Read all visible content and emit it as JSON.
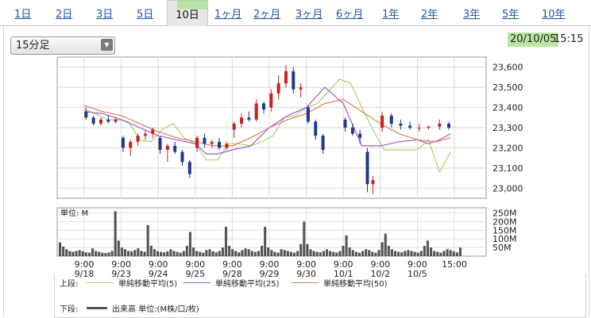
{
  "tabs": [
    {
      "label": "1日",
      "active": false
    },
    {
      "label": "2日",
      "active": false
    },
    {
      "label": "3日",
      "active": false
    },
    {
      "label": "5日",
      "active": false
    },
    {
      "label": "10日",
      "active": true
    },
    {
      "label": "1ヶ月",
      "active": false
    },
    {
      "label": "2ヶ月",
      "active": false
    },
    {
      "label": "3ヶ月",
      "active": false
    },
    {
      "label": "6ヶ月",
      "active": false
    },
    {
      "label": "1年",
      "active": false
    },
    {
      "label": "2年",
      "active": false
    },
    {
      "label": "3年",
      "active": false
    },
    {
      "label": "5年",
      "active": false
    },
    {
      "label": "10年",
      "active": false
    }
  ],
  "interval_select": {
    "value": "15分足"
  },
  "timestamp": {
    "date": "20/10/05",
    "time": "15:15"
  },
  "chart_data": [
    {
      "type": "line",
      "x_ticks": [
        {
          "time": "9:00",
          "date": "9/18"
        },
        {
          "time": "9:00",
          "date": "9/23"
        },
        {
          "time": "9:00",
          "date": "9/24"
        },
        {
          "time": "9:00",
          "date": "9/25"
        },
        {
          "time": "9:00",
          "date": "9/28"
        },
        {
          "time": "9:00",
          "date": "9/29"
        },
        {
          "time": "9:00",
          "date": "9/30"
        },
        {
          "time": "9:00",
          "date": "10/1"
        },
        {
          "time": "9:00",
          "date": "10/2"
        },
        {
          "time": "9:00",
          "date": "10/5"
        },
        {
          "time": "15:00",
          "date": ""
        }
      ],
      "y_ticks": [
        "23,600",
        "23,500",
        "23,400",
        "23,300",
        "23,200",
        "23,100",
        "23,000"
      ],
      "ylim": [
        22950,
        23650
      ],
      "series": [
        {
          "name": "単純移動平均(5)",
          "color": "#a7d46a",
          "x": [
            0,
            0.3,
            0.6,
            0.9,
            1.2,
            1.5,
            1.8,
            2.1,
            2.4,
            2.7,
            3,
            3.3,
            3.6,
            3.9,
            4.2,
            4.5,
            4.8,
            5.1,
            5.4,
            5.7,
            6,
            6.3,
            6.6,
            6.9,
            7.2,
            7.5,
            7.8,
            8.1,
            8.4,
            8.7,
            9,
            9.3,
            9.6,
            9.9
          ],
          "values": [
            23390,
            23370,
            23340,
            23340,
            23330,
            23240,
            23230,
            23290,
            23320,
            23250,
            23220,
            23140,
            23140,
            23220,
            23220,
            23210,
            23230,
            23260,
            23350,
            23360,
            23400,
            23420,
            23480,
            23540,
            23520,
            23400,
            23290,
            23190,
            23190,
            23190,
            23190,
            23240,
            23080,
            23180
          ]
        },
        {
          "name": "単純移動平均(25)",
          "color": "#a05ad2",
          "x": [
            0,
            0.5,
            1,
            1.5,
            2,
            2.5,
            3,
            3.3,
            3.6,
            4,
            4.5,
            5,
            5.5,
            6,
            6.5,
            7,
            7.5,
            8,
            8.5,
            9,
            9.3,
            9.6,
            9.9
          ],
          "values": [
            23380,
            23370,
            23340,
            23300,
            23260,
            23240,
            23220,
            23170,
            23170,
            23190,
            23210,
            23300,
            23360,
            23400,
            23500,
            23420,
            23210,
            23210,
            23230,
            23240,
            23220,
            23240,
            23270
          ]
        },
        {
          "name": "単純移動平均(50)",
          "color": "#dd7e5a",
          "x": [
            0,
            0.5,
            1,
            1.5,
            2,
            2.5,
            3,
            3.5,
            4,
            4.5,
            5,
            5.5,
            6,
            6.5,
            7,
            7.5,
            8,
            8.5,
            9,
            9.5,
            9.9
          ],
          "values": [
            23410,
            23380,
            23360,
            23320,
            23280,
            23250,
            23230,
            23210,
            23210,
            23250,
            23300,
            23340,
            23370,
            23420,
            23440,
            23380,
            23320,
            23270,
            23240,
            23230,
            23250
          ]
        }
      ],
      "candles": [
        {
          "x": 0.05,
          "o": 23380,
          "h": 23400,
          "l": 23340,
          "c": 23350
        },
        {
          "x": 0.25,
          "o": 23350,
          "h": 23360,
          "l": 23310,
          "c": 23320
        },
        {
          "x": 0.45,
          "o": 23320,
          "h": 23350,
          "l": 23310,
          "c": 23340
        },
        {
          "x": 0.65,
          "o": 23340,
          "h": 23360,
          "l": 23320,
          "c": 23330
        },
        {
          "x": 0.85,
          "o": 23330,
          "h": 23350,
          "l": 23320,
          "c": 23340
        },
        {
          "x": 1.05,
          "o": 23250,
          "h": 23260,
          "l": 23180,
          "c": 23200
        },
        {
          "x": 1.25,
          "o": 23200,
          "h": 23240,
          "l": 23160,
          "c": 23230
        },
        {
          "x": 1.45,
          "o": 23230,
          "h": 23270,
          "l": 23210,
          "c": 23260
        },
        {
          "x": 1.65,
          "o": 23260,
          "h": 23290,
          "l": 23240,
          "c": 23270
        },
        {
          "x": 1.85,
          "o": 23270,
          "h": 23300,
          "l": 23250,
          "c": 23290
        },
        {
          "x": 2.05,
          "o": 23250,
          "h": 23260,
          "l": 23170,
          "c": 23190
        },
        {
          "x": 2.25,
          "o": 23190,
          "h": 23220,
          "l": 23130,
          "c": 23210
        },
        {
          "x": 2.45,
          "o": 23210,
          "h": 23230,
          "l": 23170,
          "c": 23180
        },
        {
          "x": 2.65,
          "o": 23180,
          "h": 23190,
          "l": 23110,
          "c": 23130
        },
        {
          "x": 2.85,
          "o": 23130,
          "h": 23140,
          "l": 23050,
          "c": 23070
        },
        {
          "x": 3.05,
          "o": 23200,
          "h": 23260,
          "l": 23180,
          "c": 23250
        },
        {
          "x": 3.25,
          "o": 23250,
          "h": 23270,
          "l": 23200,
          "c": 23220
        },
        {
          "x": 3.45,
          "o": 23220,
          "h": 23240,
          "l": 23200,
          "c": 23230
        },
        {
          "x": 3.65,
          "o": 23230,
          "h": 23250,
          "l": 23190,
          "c": 23200
        },
        {
          "x": 3.85,
          "o": 23200,
          "h": 23230,
          "l": 23190,
          "c": 23220
        },
        {
          "x": 4.05,
          "o": 23290,
          "h": 23330,
          "l": 23250,
          "c": 23320
        },
        {
          "x": 4.25,
          "o": 23320,
          "h": 23370,
          "l": 23300,
          "c": 23350
        },
        {
          "x": 4.45,
          "o": 23350,
          "h": 23380,
          "l": 23330,
          "c": 23340
        },
        {
          "x": 4.65,
          "o": 23340,
          "h": 23440,
          "l": 23330,
          "c": 23420
        },
        {
          "x": 4.85,
          "o": 23420,
          "h": 23430,
          "l": 23370,
          "c": 23390
        },
        {
          "x": 5.05,
          "o": 23400,
          "h": 23490,
          "l": 23380,
          "c": 23470
        },
        {
          "x": 5.25,
          "o": 23470,
          "h": 23560,
          "l": 23440,
          "c": 23520
        },
        {
          "x": 5.45,
          "o": 23520,
          "h": 23610,
          "l": 23500,
          "c": 23580
        },
        {
          "x": 5.65,
          "o": 23580,
          "h": 23600,
          "l": 23470,
          "c": 23490
        },
        {
          "x": 5.85,
          "o": 23490,
          "h": 23520,
          "l": 23450,
          "c": 23500
        },
        {
          "x": 6.05,
          "o": 23400,
          "h": 23410,
          "l": 23320,
          "c": 23330
        },
        {
          "x": 6.25,
          "o": 23330,
          "h": 23340,
          "l": 23240,
          "c": 23260
        },
        {
          "x": 6.45,
          "o": 23260,
          "h": 23270,
          "l": 23170,
          "c": 23190
        },
        {
          "x": 7.05,
          "o": 23340,
          "h": 23350,
          "l": 23280,
          "c": 23300
        },
        {
          "x": 7.25,
          "o": 23300,
          "h": 23320,
          "l": 23260,
          "c": 23270
        },
        {
          "x": 7.45,
          "o": 23270,
          "h": 23290,
          "l": 23220,
          "c": 23250
        },
        {
          "x": 7.65,
          "o": 23180,
          "h": 23200,
          "l": 22980,
          "c": 23020
        },
        {
          "x": 7.8,
          "o": 23020,
          "h": 23060,
          "l": 22970,
          "c": 23040
        },
        {
          "x": 8.05,
          "o": 23300,
          "h": 23380,
          "l": 23280,
          "c": 23360
        },
        {
          "x": 8.3,
          "o": 23360,
          "h": 23370,
          "l": 23300,
          "c": 23320
        },
        {
          "x": 8.55,
          "o": 23320,
          "h": 23340,
          "l": 23290,
          "c": 23310
        },
        {
          "x": 8.8,
          "o": 23310,
          "h": 23330,
          "l": 23290,
          "c": 23300
        },
        {
          "x": 9.05,
          "o": 23300,
          "h": 23320,
          "l": 23280,
          "c": 23300
        },
        {
          "x": 9.3,
          "o": 23300,
          "h": 23310,
          "l": 23290,
          "c": 23305
        },
        {
          "x": 9.6,
          "o": 23305,
          "h": 23340,
          "l": 23290,
          "c": 23320
        },
        {
          "x": 9.85,
          "o": 23320,
          "h": 23330,
          "l": 23290,
          "c": 23300
        }
      ]
    },
    {
      "type": "bar",
      "unit_label": "単位: M",
      "y_ticks": [
        "250M",
        "200M",
        "150M",
        "100M",
        "50M"
      ],
      "ylim": [
        0,
        280
      ],
      "values": [
        80,
        55,
        40,
        30,
        25,
        30,
        35,
        28,
        22,
        20,
        45,
        30,
        25,
        20,
        18,
        22,
        30,
        260,
        90,
        50,
        40,
        30,
        28,
        35,
        45,
        30,
        25,
        180,
        60,
        40,
        30,
        25,
        22,
        28,
        40,
        30,
        25,
        20,
        30,
        60,
        140,
        50,
        30,
        25,
        20,
        35,
        40,
        28,
        22,
        30,
        50,
        170,
        60,
        40,
        30,
        22,
        35,
        45,
        40,
        30,
        25,
        30,
        60,
        170,
        50,
        35,
        25,
        20,
        40,
        35,
        30,
        25,
        20,
        30,
        70,
        200,
        70,
        40,
        30,
        25,
        22,
        30,
        40,
        30,
        25,
        20,
        30,
        60,
        120,
        50,
        35,
        25,
        20,
        30,
        40,
        35,
        25,
        20,
        35,
        80,
        130,
        60,
        40,
        30,
        25,
        22,
        30,
        35,
        30,
        25,
        20,
        30,
        60,
        90,
        50,
        30,
        25,
        20,
        30,
        40,
        35,
        28,
        22,
        50
      ]
    }
  ],
  "legend": {
    "upper_label": "上段:",
    "lower_label": "下段:",
    "ma5": "単純移動平均(5)",
    "ma25": "単純移動平均(25)",
    "ma50": "単純移動平均(50)",
    "volume": "出来高 単位:(M株/口/枚)"
  }
}
